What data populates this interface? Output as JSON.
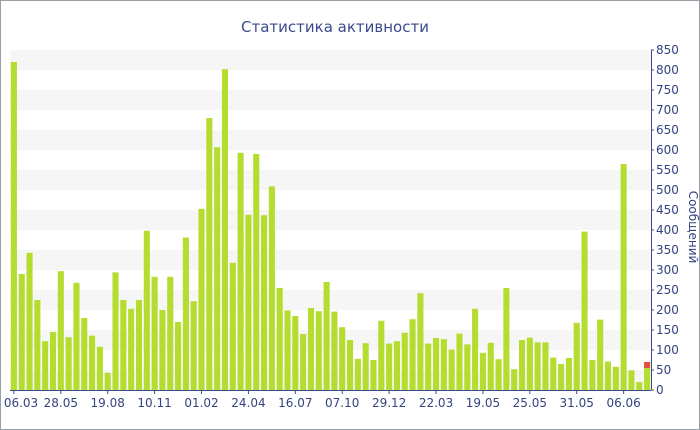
{
  "chart_data": {
    "type": "bar",
    "title": "Статистика активности",
    "xlabel": "",
    "ylabel": "Сообщений",
    "ylim": [
      0,
      850
    ],
    "y_ticks": [
      0,
      50,
      100,
      150,
      200,
      250,
      300,
      350,
      400,
      450,
      500,
      550,
      600,
      650,
      700,
      750,
      800,
      850
    ],
    "x_tick_labels": [
      {
        "label": "06.03",
        "index": 0
      },
      {
        "label": "28.05",
        "index": 6
      },
      {
        "label": "19.08",
        "index": 12
      },
      {
        "label": "10.11",
        "index": 18
      },
      {
        "label": "01.02",
        "index": 24
      },
      {
        "label": "24.04",
        "index": 30
      },
      {
        "label": "16.07",
        "index": 36
      },
      {
        "label": "07.10",
        "index": 42
      },
      {
        "label": "29.12",
        "index": 48
      },
      {
        "label": "22.03",
        "index": 54
      },
      {
        "label": "19.05",
        "index": 60
      },
      {
        "label": "25.05",
        "index": 66
      },
      {
        "label": "31.05",
        "index": 72
      },
      {
        "label": "06.06",
        "index": 78
      }
    ],
    "grid": "horizontal-bands",
    "bar_color": "#b5dd2f",
    "highlight_color": "#e0533a",
    "values": [
      820,
      290,
      343,
      225,
      122,
      145,
      297,
      132,
      268,
      180,
      136,
      108,
      43,
      294,
      225,
      203,
      225,
      398,
      283,
      200,
      283,
      170,
      381,
      222,
      453,
      680,
      607,
      802,
      318,
      593,
      438,
      590,
      437,
      509,
      255,
      199,
      185,
      140,
      205,
      197,
      270,
      196,
      157,
      125,
      78,
      117,
      75,
      173,
      116,
      122,
      143,
      177,
      242,
      116,
      130,
      127,
      101,
      141,
      114,
      203,
      93,
      118,
      77,
      255,
      52,
      125,
      131,
      119,
      119,
      81,
      65,
      80,
      168,
      396,
      75,
      176,
      71,
      58,
      565,
      49,
      20,
      70
    ],
    "last_bar_split": {
      "green": 55,
      "red": 15
    }
  }
}
